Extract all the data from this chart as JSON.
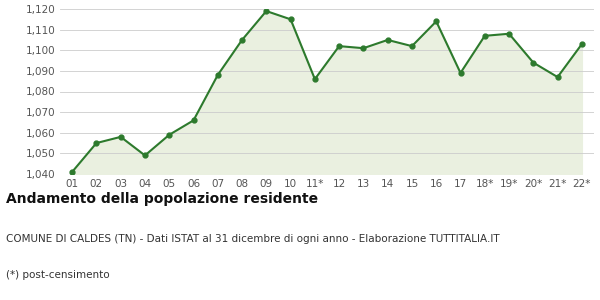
{
  "x_labels": [
    "01",
    "02",
    "03",
    "04",
    "05",
    "06",
    "07",
    "08",
    "09",
    "10",
    "11*",
    "12",
    "13",
    "14",
    "15",
    "16",
    "17",
    "18*",
    "19*",
    "20*",
    "21*",
    "22*"
  ],
  "y_values": [
    1041,
    1055,
    1058,
    1049,
    1059,
    1066,
    1088,
    1105,
    1119,
    1115,
    1086,
    1102,
    1101,
    1105,
    1102,
    1114,
    1089,
    1107,
    1108,
    1094,
    1087,
    1103
  ],
  "line_color": "#2d7a2d",
  "fill_color": "#eaf0e0",
  "marker_color": "#2d7a2d",
  "background_color": "#ffffff",
  "plot_bg_color": "#ffffff",
  "ylim_min": 1040,
  "ylim_max": 1120,
  "yticks": [
    1040,
    1050,
    1060,
    1070,
    1080,
    1090,
    1100,
    1110,
    1120
  ],
  "title": "Andamento della popolazione residente",
  "subtitle": "COMUNE DI CALDES (TN) - Dati ISTAT al 31 dicembre di ogni anno - Elaborazione TUTTITALIA.IT",
  "footnote": "(*) post-censimento",
  "title_fontsize": 10,
  "subtitle_fontsize": 7.5,
  "footnote_fontsize": 7.5,
  "tick_fontsize": 7.5,
  "grid_color": "#cccccc",
  "line_width": 1.5,
  "marker_size": 3.5
}
